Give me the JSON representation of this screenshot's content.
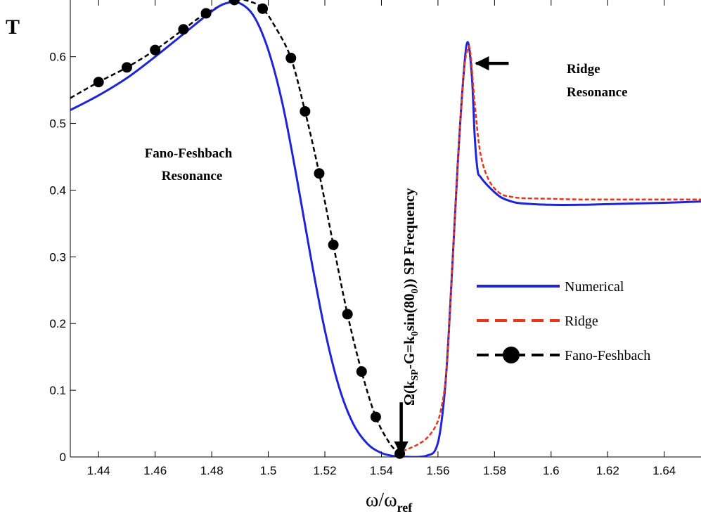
{
  "chart_data": {
    "type": "line",
    "ylabel": "T",
    "xlabel": {
      "main": "ω/ω",
      "sub": "ref"
    },
    "xlim": [
      1.43,
      1.653
    ],
    "ylim": [
      0,
      0.685
    ],
    "xticks": [
      1.44,
      1.46,
      1.48,
      1.5,
      1.52,
      1.54,
      1.56,
      1.58,
      1.6,
      1.62,
      1.64
    ],
    "xtick_labels": [
      "1.44",
      "1.46",
      "1.48",
      "1.5",
      "1.52",
      "1.54",
      "1.56",
      "1.58",
      "1.6",
      "1.62",
      "1.64"
    ],
    "yticks": [
      0,
      0.1,
      0.2,
      0.3,
      0.4,
      0.5,
      0.6
    ],
    "ytick_labels": [
      "0",
      "0.1",
      "0.2",
      "0.3",
      "0.4",
      "0.5",
      "0.6"
    ],
    "grid": false,
    "legend_position": "right",
    "series": [
      {
        "name": "Numerical",
        "color": "#1f24d6",
        "style": "solid",
        "x": [
          1.43,
          1.44,
          1.45,
          1.46,
          1.47,
          1.48,
          1.485,
          1.49,
          1.495,
          1.5,
          1.505,
          1.51,
          1.515,
          1.52,
          1.525,
          1.53,
          1.535,
          1.54,
          1.545,
          1.55,
          1.553,
          1.556,
          1.559,
          1.561,
          1.563,
          1.565,
          1.567,
          1.569,
          1.5705,
          1.572,
          1.573,
          1.574,
          1.575,
          1.578,
          1.582,
          1.586,
          1.59,
          1.6,
          1.61,
          1.62,
          1.63,
          1.64,
          1.653
        ],
        "y": [
          0.52,
          0.542,
          0.568,
          0.6,
          0.634,
          0.668,
          0.68,
          0.68,
          0.66,
          0.61,
          0.53,
          0.42,
          0.3,
          0.19,
          0.105,
          0.05,
          0.02,
          0.006,
          0.001,
          0.0,
          0.0,
          0.002,
          0.01,
          0.045,
          0.13,
          0.28,
          0.44,
          0.57,
          0.622,
          0.57,
          0.48,
          0.43,
          0.42,
          0.405,
          0.39,
          0.383,
          0.38,
          0.378,
          0.378,
          0.379,
          0.38,
          0.381,
          0.383
        ]
      },
      {
        "name": "Ridge",
        "color": "#e8361c",
        "style": "dashed",
        "x": [
          1.5475,
          1.55,
          1.553,
          1.556,
          1.559,
          1.561,
          1.563,
          1.565,
          1.567,
          1.569,
          1.5705,
          1.5715,
          1.573,
          1.575,
          1.578,
          1.582,
          1.586,
          1.59,
          1.6,
          1.61,
          1.62,
          1.63,
          1.64,
          1.653
        ],
        "y": [
          0.009,
          0.013,
          0.019,
          0.028,
          0.045,
          0.07,
          0.13,
          0.28,
          0.44,
          0.57,
          0.612,
          0.605,
          0.53,
          0.455,
          0.415,
          0.395,
          0.39,
          0.388,
          0.387,
          0.386,
          0.386,
          0.386,
          0.386,
          0.386
        ]
      },
      {
        "name": "Fano-Feshbach",
        "color": "#000000",
        "style": "dashed-markers",
        "x": [
          1.43,
          1.44,
          1.45,
          1.46,
          1.47,
          1.478,
          1.488,
          1.494,
          1.498,
          1.502,
          1.508,
          1.513,
          1.518,
          1.523,
          1.528,
          1.533,
          1.538,
          1.543,
          1.5465
        ],
        "y": [
          0.538,
          0.562,
          0.584,
          0.61,
          0.641,
          0.665,
          0.685,
          0.682,
          0.672,
          0.648,
          0.598,
          0.518,
          0.425,
          0.318,
          0.214,
          0.128,
          0.06,
          0.02,
          0.005
        ],
        "markers_x": [
          1.44,
          1.45,
          1.46,
          1.47,
          1.478,
          1.488,
          1.498,
          1.508,
          1.513,
          1.518,
          1.523,
          1.528,
          1.533,
          1.538,
          1.5465
        ],
        "markers_y": [
          0.562,
          0.584,
          0.61,
          0.641,
          0.665,
          0.685,
          0.672,
          0.598,
          0.518,
          0.425,
          0.318,
          0.214,
          0.128,
          0.06,
          0.005
        ]
      }
    ],
    "annotations": {
      "fano_lines": [
        "Fano-Feshbach",
        "Resonance"
      ],
      "ridge_lines": [
        "Ridge",
        "Resonance"
      ],
      "ridge_arrow": {
        "from": [
          1.585,
          0.59
        ],
        "to": [
          1.5735,
          0.59
        ]
      },
      "sp_label": {
        "parts": [
          {
            "t": "Ω(k",
            "sub": false
          },
          {
            "t": "SP",
            "sub": true
          },
          {
            "t": "-G=k",
            "sub": false
          },
          {
            "t": "0",
            "sub": true
          },
          {
            "t": "sin(80",
            "sub": false
          },
          {
            "t": "0",
            "sub": true
          },
          {
            "t": "))  SP Frequency",
            "sub": false
          }
        ]
      },
      "sp_arrow": {
        "x": 1.547,
        "y_top": 0.082,
        "y_bottom": 0.004
      }
    }
  }
}
